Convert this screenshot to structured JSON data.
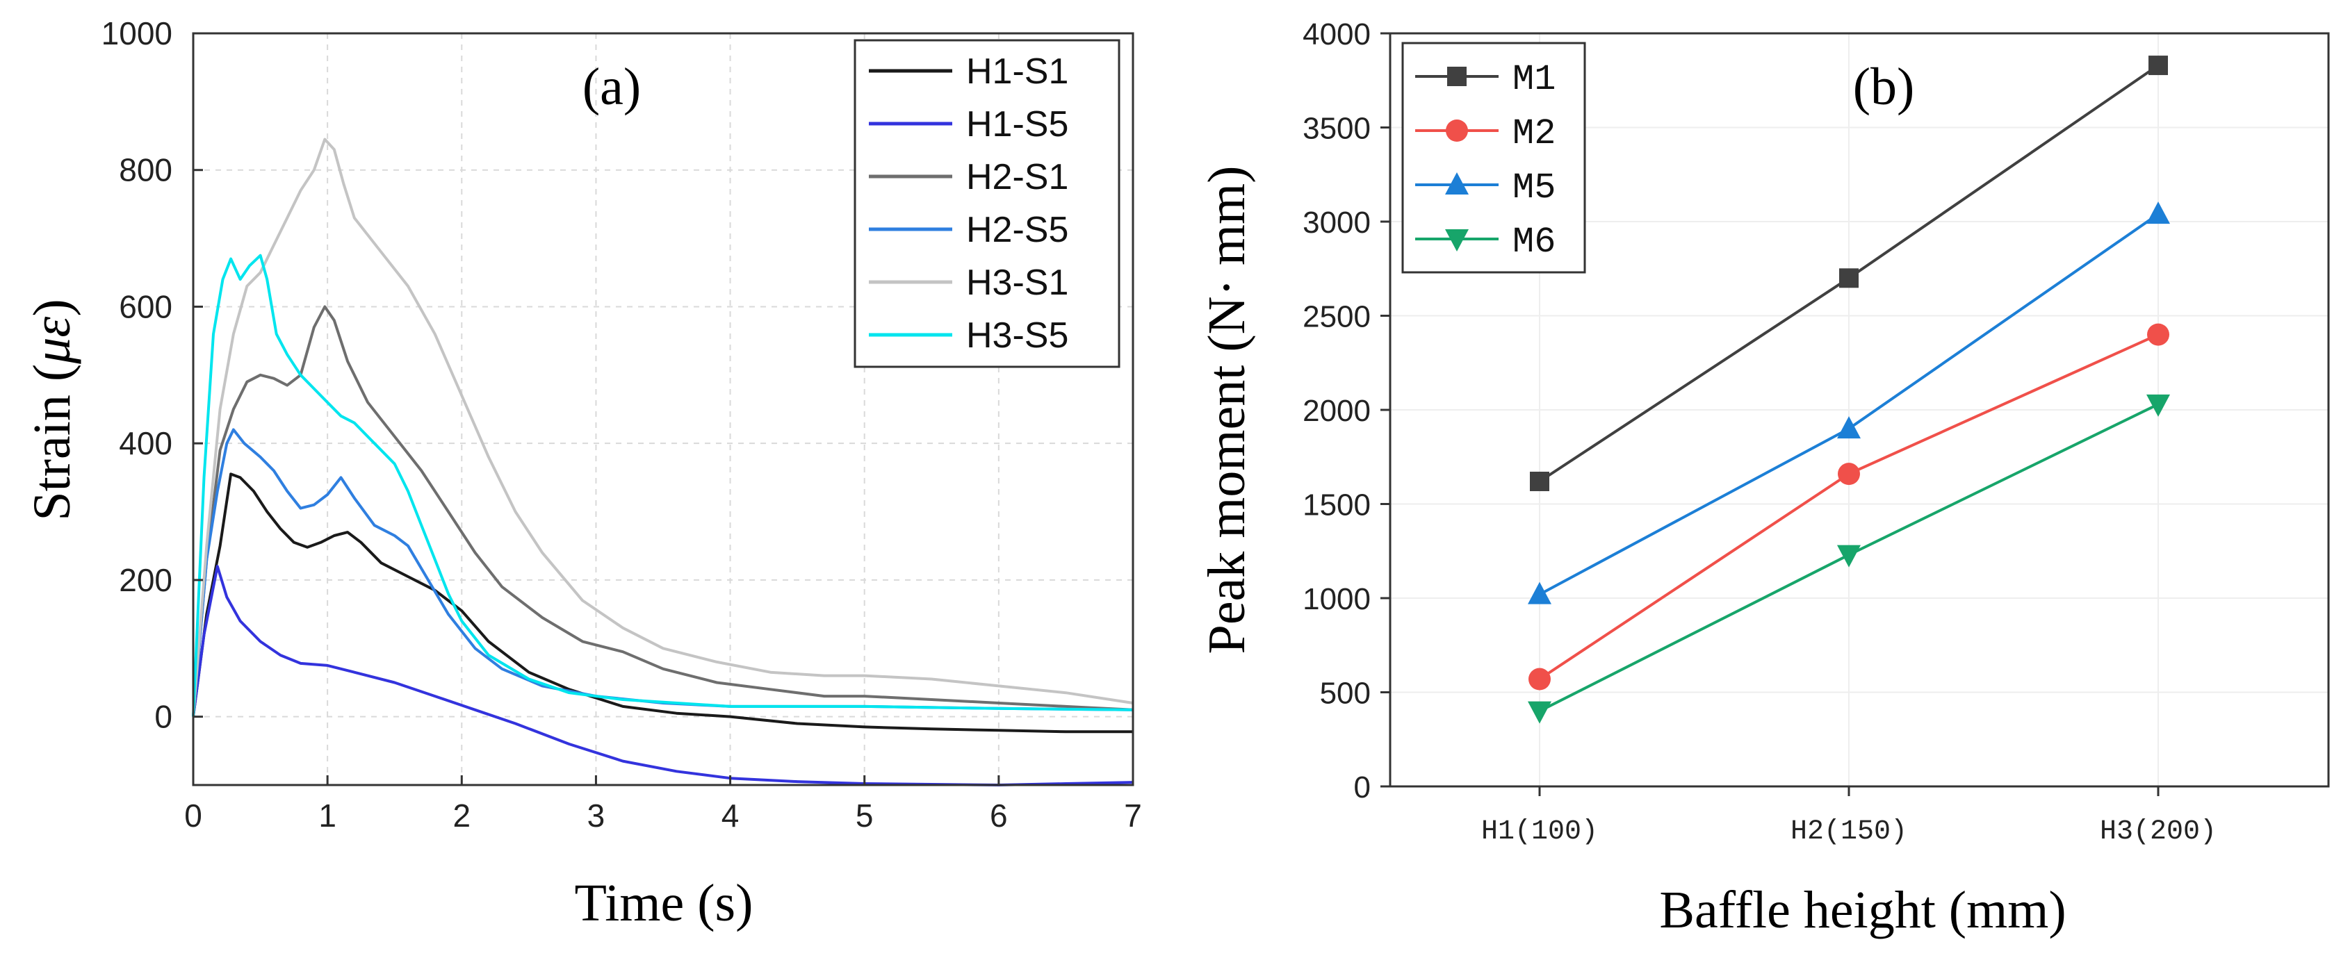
{
  "chart_data": [
    {
      "panel_label": "(a)",
      "type": "line",
      "xlabel": "Time (s)",
      "ylabel_text": "Strain (",
      "ylabel_unit": "με",
      "ylabel_close": ")",
      "xlim": [
        0,
        7
      ],
      "ylim": [
        -100,
        1000
      ],
      "xticks": [
        0,
        1,
        2,
        3,
        4,
        5,
        6,
        7
      ],
      "yticks": [
        0,
        200,
        400,
        600,
        800,
        1000
      ],
      "legend_position": "top-right",
      "series": [
        {
          "name": "H1-S1",
          "color": "#1a1a1a",
          "points": [
            [
              0,
              0
            ],
            [
              0.1,
              150
            ],
            [
              0.2,
              250
            ],
            [
              0.28,
              355
            ],
            [
              0.35,
              350
            ],
            [
              0.45,
              330
            ],
            [
              0.55,
              300
            ],
            [
              0.65,
              275
            ],
            [
              0.75,
              255
            ],
            [
              0.85,
              248
            ],
            [
              0.95,
              255
            ],
            [
              1.05,
              265
            ],
            [
              1.15,
              270
            ],
            [
              1.25,
              255
            ],
            [
              1.4,
              225
            ],
            [
              1.6,
              205
            ],
            [
              1.8,
              185
            ],
            [
              2.0,
              155
            ],
            [
              2.2,
              110
            ],
            [
              2.5,
              65
            ],
            [
              2.8,
              40
            ],
            [
              3.2,
              15
            ],
            [
              3.6,
              5
            ],
            [
              4.0,
              0
            ],
            [
              4.5,
              -10
            ],
            [
              5,
              -15
            ],
            [
              5.5,
              -18
            ],
            [
              6,
              -20
            ],
            [
              6.5,
              -22
            ],
            [
              7,
              -22
            ]
          ]
        },
        {
          "name": "H1-S5",
          "color": "#3333dd",
          "points": [
            [
              0,
              0
            ],
            [
              0.08,
              120
            ],
            [
              0.18,
              220
            ],
            [
              0.25,
              175
            ],
            [
              0.35,
              140
            ],
            [
              0.5,
              110
            ],
            [
              0.65,
              90
            ],
            [
              0.8,
              78
            ],
            [
              1.0,
              75
            ],
            [
              1.2,
              65
            ],
            [
              1.5,
              50
            ],
            [
              1.8,
              30
            ],
            [
              2.1,
              10
            ],
            [
              2.4,
              -10
            ],
            [
              2.8,
              -40
            ],
            [
              3.2,
              -65
            ],
            [
              3.6,
              -80
            ],
            [
              4.0,
              -90
            ],
            [
              4.5,
              -95
            ],
            [
              5,
              -98
            ],
            [
              5.5,
              -99
            ],
            [
              6,
              -100
            ],
            [
              6.5,
              -98
            ],
            [
              7,
              -96
            ]
          ]
        },
        {
          "name": "H2-S1",
          "color": "#6e6e6e",
          "points": [
            [
              0,
              0
            ],
            [
              0.1,
              230
            ],
            [
              0.2,
              390
            ],
            [
              0.3,
              450
            ],
            [
              0.4,
              490
            ],
            [
              0.5,
              500
            ],
            [
              0.6,
              495
            ],
            [
              0.7,
              485
            ],
            [
              0.8,
              500
            ],
            [
              0.9,
              570
            ],
            [
              0.98,
              600
            ],
            [
              1.05,
              580
            ],
            [
              1.15,
              520
            ],
            [
              1.3,
              460
            ],
            [
              1.5,
              410
            ],
            [
              1.7,
              360
            ],
            [
              1.9,
              300
            ],
            [
              2.1,
              240
            ],
            [
              2.3,
              190
            ],
            [
              2.6,
              145
            ],
            [
              2.9,
              110
            ],
            [
              3.2,
              95
            ],
            [
              3.5,
              70
            ],
            [
              3.9,
              50
            ],
            [
              4.3,
              40
            ],
            [
              4.7,
              30
            ],
            [
              5,
              30
            ],
            [
              5.5,
              25
            ],
            [
              6,
              20
            ],
            [
              6.5,
              15
            ],
            [
              7,
              10
            ]
          ]
        },
        {
          "name": "H2-S5",
          "color": "#2f7fe0",
          "points": [
            [
              0,
              0
            ],
            [
              0.1,
              230
            ],
            [
              0.18,
              330
            ],
            [
              0.25,
              400
            ],
            [
              0.3,
              420
            ],
            [
              0.38,
              400
            ],
            [
              0.5,
              380
            ],
            [
              0.6,
              360
            ],
            [
              0.7,
              330
            ],
            [
              0.8,
              305
            ],
            [
              0.9,
              310
            ],
            [
              1.0,
              325
            ],
            [
              1.1,
              350
            ],
            [
              1.2,
              320
            ],
            [
              1.35,
              280
            ],
            [
              1.5,
              265
            ],
            [
              1.6,
              250
            ],
            [
              1.75,
              200
            ],
            [
              1.9,
              150
            ],
            [
              2.1,
              100
            ],
            [
              2.3,
              70
            ],
            [
              2.6,
              45
            ],
            [
              3.0,
              30
            ],
            [
              3.5,
              20
            ],
            [
              4,
              15
            ],
            [
              5,
              15
            ],
            [
              6,
              12
            ],
            [
              7,
              10
            ]
          ]
        },
        {
          "name": "H3-S1",
          "color": "#c4c4c4",
          "points": [
            [
              0,
              0
            ],
            [
              0.1,
              250
            ],
            [
              0.2,
              450
            ],
            [
              0.3,
              560
            ],
            [
              0.4,
              630
            ],
            [
              0.5,
              650
            ],
            [
              0.6,
              690
            ],
            [
              0.7,
              730
            ],
            [
              0.8,
              770
            ],
            [
              0.9,
              800
            ],
            [
              0.98,
              845
            ],
            [
              1.05,
              830
            ],
            [
              1.12,
              780
            ],
            [
              1.2,
              730
            ],
            [
              1.4,
              680
            ],
            [
              1.6,
              630
            ],
            [
              1.8,
              560
            ],
            [
              2.0,
              470
            ],
            [
              2.2,
              380
            ],
            [
              2.4,
              300
            ],
            [
              2.6,
              240
            ],
            [
              2.9,
              170
            ],
            [
              3.2,
              130
            ],
            [
              3.5,
              100
            ],
            [
              3.9,
              80
            ],
            [
              4.3,
              65
            ],
            [
              4.7,
              60
            ],
            [
              5,
              60
            ],
            [
              5.5,
              55
            ],
            [
              6,
              45
            ],
            [
              6.5,
              35
            ],
            [
              7,
              20
            ]
          ]
        },
        {
          "name": "H3-S5",
          "color": "#00e5ee",
          "points": [
            [
              0,
              0
            ],
            [
              0.08,
              350
            ],
            [
              0.15,
              560
            ],
            [
              0.22,
              640
            ],
            [
              0.28,
              670
            ],
            [
              0.35,
              640
            ],
            [
              0.42,
              660
            ],
            [
              0.5,
              675
            ],
            [
              0.55,
              640
            ],
            [
              0.62,
              560
            ],
            [
              0.7,
              530
            ],
            [
              0.8,
              500
            ],
            [
              0.9,
              480
            ],
            [
              1.0,
              460
            ],
            [
              1.1,
              440
            ],
            [
              1.2,
              430
            ],
            [
              1.35,
              400
            ],
            [
              1.5,
              370
            ],
            [
              1.6,
              330
            ],
            [
              1.7,
              280
            ],
            [
              1.8,
              230
            ],
            [
              1.9,
              180
            ],
            [
              2.0,
              140
            ],
            [
              2.2,
              90
            ],
            [
              2.5,
              55
            ],
            [
              2.8,
              35
            ],
            [
              3.2,
              25
            ],
            [
              4,
              15
            ],
            [
              5,
              15
            ],
            [
              6,
              12
            ],
            [
              7,
              10
            ]
          ]
        }
      ]
    },
    {
      "panel_label": "(b)",
      "type": "line",
      "xlabel": "Baffle height (mm)",
      "ylabel": "Peak moment (N· mm)",
      "categories": [
        "H1(100)",
        "H2(150)",
        "H3(200)"
      ],
      "ylim": [
        0,
        4000
      ],
      "yticks": [
        0,
        500,
        1000,
        1500,
        2000,
        2500,
        3000,
        3500,
        4000
      ],
      "legend_position": "top-left",
      "series": [
        {
          "name": "M1",
          "color": "#404040",
          "marker": "square",
          "values": [
            1620,
            2700,
            3830
          ]
        },
        {
          "name": "M2",
          "color": "#f0504a",
          "marker": "circle",
          "values": [
            570,
            1660,
            2400
          ]
        },
        {
          "name": "M5",
          "color": "#1c7fd6",
          "marker": "triangle-up",
          "values": [
            1020,
            1900,
            3040
          ]
        },
        {
          "name": "M6",
          "color": "#17a56a",
          "marker": "triangle-down",
          "values": [
            400,
            1230,
            2030
          ]
        }
      ]
    }
  ]
}
